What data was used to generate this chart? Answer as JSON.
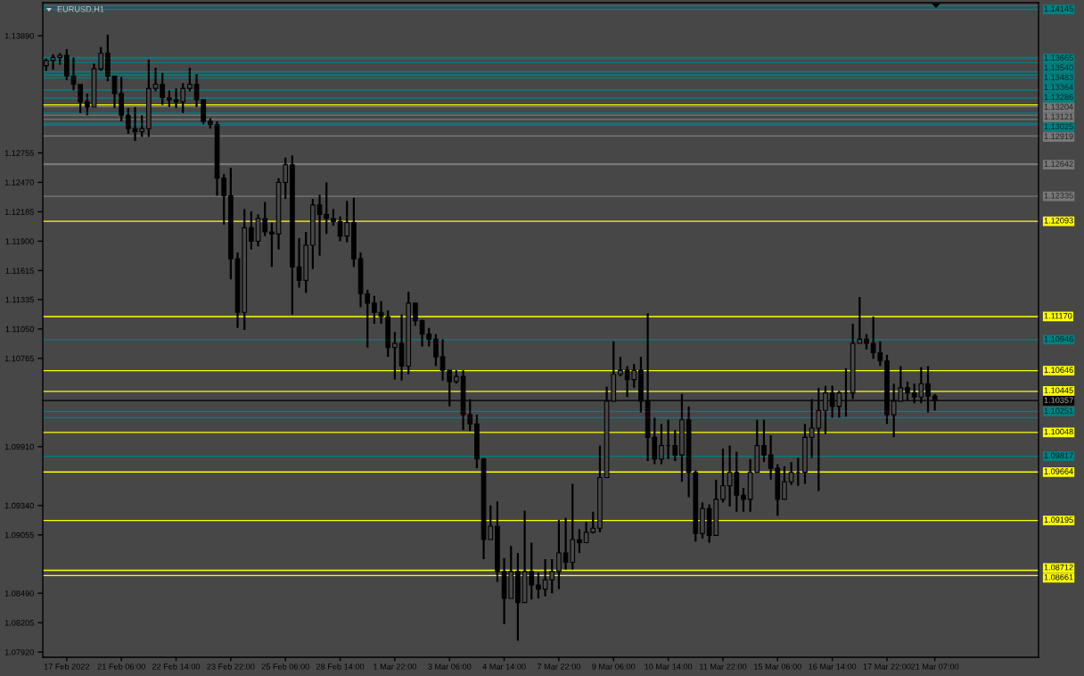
{
  "chart_data": {
    "type": "candlestick",
    "title": "EURUSD,H1",
    "color": "#000000",
    "categories": [
      null,
      null,
      null,
      "17 Feb 2022",
      null,
      null,
      null,
      null,
      null,
      null,
      null,
      "21 Feb 06:00",
      null,
      null,
      null,
      null,
      null,
      null,
      null,
      "22 Feb 14:00",
      null,
      null,
      null,
      null,
      null,
      null,
      null,
      "23 Feb 22:00",
      null,
      null,
      null,
      null,
      null,
      null,
      null,
      "25 Feb 06:00",
      null,
      null,
      null,
      null,
      null,
      null,
      null,
      "28 Feb 14:00",
      null,
      null,
      null,
      null,
      null,
      null,
      null,
      "1 Mar 22:00",
      null,
      null,
      null,
      null,
      null,
      null,
      null,
      "3 Mar 06:00",
      null,
      null,
      null,
      null,
      null,
      null,
      null,
      "4 Mar 14:00",
      null,
      null,
      null,
      null,
      null,
      null,
      null,
      "7 Mar 22:00",
      null,
      null,
      null,
      null,
      null,
      null,
      null,
      "9 Mar 06:00",
      null,
      null,
      null,
      null,
      null,
      null,
      null,
      "10 Mar 14:00",
      null,
      null,
      null,
      null,
      null,
      null,
      null,
      "11 Mar 22:00",
      null,
      null,
      null,
      null,
      null,
      null,
      null,
      "15 Mar 06:00",
      null,
      null,
      null,
      null,
      null,
      null,
      null,
      "16 Mar 14:00",
      null,
      null,
      null,
      null,
      null,
      null,
      null,
      "17 Mar 22:00",
      null,
      null,
      null,
      null,
      null,
      null,
      "21 Mar 07:00"
    ],
    "ohlc": [
      [
        1.136,
        1.1367,
        1.1355,
        1.1365
      ],
      [
        1.1365,
        1.1371,
        1.1356,
        1.1368
      ],
      [
        1.1368,
        1.1372,
        1.1361,
        1.137
      ],
      [
        1.137,
        1.1376,
        1.1346,
        1.135
      ],
      [
        1.135,
        1.1368,
        1.1336,
        1.1342
      ],
      [
        1.1342,
        1.1342,
        1.1314,
        1.1325
      ],
      [
        1.1325,
        1.1333,
        1.1312,
        1.132
      ],
      [
        1.132,
        1.1362,
        1.132,
        1.1357
      ],
      [
        1.1357,
        1.1378,
        1.1355,
        1.1372
      ],
      [
        1.1372,
        1.139,
        1.1345,
        1.135
      ],
      [
        1.135,
        1.135,
        1.1319,
        1.1333
      ],
      [
        1.1333,
        1.1349,
        1.1306,
        1.1312
      ],
      [
        1.1312,
        1.1319,
        1.1294,
        1.1299
      ],
      [
        1.1299,
        1.132,
        1.1287,
        1.1296
      ],
      [
        1.1296,
        1.1312,
        1.1291,
        1.1299
      ],
      [
        1.1299,
        1.1366,
        1.1291,
        1.1338
      ],
      [
        1.1338,
        1.1358,
        1.1335,
        1.1342
      ],
      [
        1.1342,
        1.1353,
        1.1322,
        1.1329
      ],
      [
        1.1329,
        1.1336,
        1.132,
        1.1327
      ],
      [
        1.1327,
        1.1338,
        1.1319,
        1.1325
      ],
      [
        1.1325,
        1.1343,
        1.1314,
        1.1338
      ],
      [
        1.1338,
        1.1358,
        1.1335,
        1.1342
      ],
      [
        1.1342,
        1.1352,
        1.132,
        1.1327
      ],
      [
        1.1327,
        1.1327,
        1.1303,
        1.1306
      ],
      [
        1.1306,
        1.1309,
        1.1299,
        1.1303
      ],
      [
        1.1303,
        1.1306,
        1.1234,
        1.1251
      ],
      [
        1.1251,
        1.1255,
        1.1206,
        1.1234
      ],
      [
        1.1234,
        1.1261,
        1.1153,
        1.1173
      ],
      [
        1.1173,
        1.1179,
        1.1106,
        1.1121
      ],
      [
        1.1121,
        1.1221,
        1.1104,
        1.1203
      ],
      [
        1.1203,
        1.1219,
        1.1182,
        1.119
      ],
      [
        1.119,
        1.1216,
        1.1185,
        1.1212
      ],
      [
        1.1212,
        1.1228,
        1.1195,
        1.1199
      ],
      [
        1.1199,
        1.1208,
        1.1165,
        1.1197
      ],
      [
        1.1197,
        1.1251,
        1.1182,
        1.1247
      ],
      [
        1.1247,
        1.1271,
        1.1231,
        1.1264
      ],
      [
        1.1264,
        1.1273,
        1.1119,
        1.1165
      ],
      [
        1.1165,
        1.1193,
        1.1145,
        1.1152
      ],
      [
        1.1152,
        1.1199,
        1.114,
        1.1186
      ],
      [
        1.1186,
        1.1231,
        1.1163,
        1.1225
      ],
      [
        1.1225,
        1.1235,
        1.1176,
        1.1216
      ],
      [
        1.1216,
        1.1247,
        1.1197,
        1.1212
      ],
      [
        1.1212,
        1.1221,
        1.1205,
        1.1209
      ],
      [
        1.1209,
        1.1214,
        1.119,
        1.1195
      ],
      [
        1.1195,
        1.1229,
        1.1189,
        1.1208
      ],
      [
        1.1208,
        1.1232,
        1.1165,
        1.1173
      ],
      [
        1.1173,
        1.1179,
        1.1126,
        1.1139
      ],
      [
        1.1139,
        1.1143,
        1.1087,
        1.113
      ],
      [
        1.113,
        1.1137,
        1.111,
        1.1121
      ],
      [
        1.1121,
        1.1132,
        1.111,
        1.1117
      ],
      [
        1.1117,
        1.1123,
        1.1078,
        1.1087
      ],
      [
        1.1087,
        1.1102,
        1.1056,
        1.1091
      ],
      [
        1.1091,
        1.1119,
        1.1055,
        1.1069
      ],
      [
        1.1069,
        1.1141,
        1.1061,
        1.113
      ],
      [
        1.113,
        1.113,
        1.1108,
        1.1113
      ],
      [
        1.1113,
        1.1114,
        1.1088,
        1.11
      ],
      [
        1.11,
        1.1106,
        1.1088,
        1.1095
      ],
      [
        1.1095,
        1.11,
        1.1069,
        1.1078
      ],
      [
        1.1078,
        1.1095,
        1.1055,
        1.1065
      ],
      [
        1.1065,
        1.1065,
        1.103,
        1.1054
      ],
      [
        1.1054,
        1.1065,
        1.1052,
        1.1059
      ],
      [
        1.1059,
        1.1065,
        1.1007,
        1.1022
      ],
      [
        1.1022,
        1.1037,
        1.1006,
        1.1013
      ],
      [
        1.1013,
        1.1022,
        1.097,
        1.0979
      ],
      [
        1.0979,
        1.098,
        1.0882,
        1.0901
      ],
      [
        1.0901,
        1.0934,
        1.0901,
        1.0914
      ],
      [
        1.0914,
        1.0938,
        1.086,
        1.087
      ],
      [
        1.087,
        1.0883,
        1.0819,
        1.0844
      ],
      [
        1.0844,
        1.0895,
        1.0844,
        1.087
      ],
      [
        1.087,
        1.0888,
        1.0803,
        1.084
      ],
      [
        1.084,
        1.0929,
        1.084,
        1.087
      ],
      [
        1.087,
        1.0898,
        1.0843,
        1.0857
      ],
      [
        1.0857,
        1.0869,
        1.0844,
        1.0853
      ],
      [
        1.0853,
        1.0882,
        1.0846,
        1.0862
      ],
      [
        1.0862,
        1.0882,
        1.0849,
        1.087
      ],
      [
        1.087,
        1.092,
        1.0853,
        1.0888
      ],
      [
        1.0888,
        1.0922,
        1.0872,
        1.0879
      ],
      [
        1.0879,
        1.0955,
        1.0872,
        1.0901
      ],
      [
        1.0901,
        1.0911,
        1.0888,
        1.0898
      ],
      [
        1.0898,
        1.0918,
        1.0898,
        1.0908
      ],
      [
        1.0908,
        1.0928,
        1.0907,
        1.0912
      ],
      [
        1.0912,
        1.0992,
        1.0908,
        1.0961
      ],
      [
        1.0961,
        1.1049,
        1.0961,
        1.1035
      ],
      [
        1.1035,
        1.1093,
        1.1035,
        1.1061
      ],
      [
        1.1061,
        1.1078,
        1.1059,
        1.1065
      ],
      [
        1.1065,
        1.1069,
        1.1039,
        1.1056
      ],
      [
        1.1056,
        1.1071,
        1.1048,
        1.1065
      ],
      [
        1.1065,
        1.1078,
        1.1024,
        1.1035
      ],
      [
        1.1035,
        1.112,
        1.0977,
        1.1
      ],
      [
        1.1,
        1.1019,
        1.0974,
        1.0979
      ],
      [
        1.0979,
        1.1013,
        1.0974,
        1.0992
      ],
      [
        1.0992,
        1.1017,
        1.0979,
        1.0992
      ],
      [
        1.0992,
        1.1007,
        1.0977,
        1.0983
      ],
      [
        1.0983,
        1.1042,
        1.0957,
        1.1017
      ],
      [
        1.1017,
        1.103,
        1.0942,
        1.0966
      ],
      [
        1.0966,
        1.0968,
        1.0899,
        1.0907
      ],
      [
        1.0907,
        1.0937,
        1.0902,
        1.0931
      ],
      [
        1.0931,
        1.0935,
        1.0898,
        1.0905
      ],
      [
        1.0905,
        1.0959,
        1.0905,
        1.094
      ],
      [
        1.094,
        1.0989,
        1.0937,
        1.0953
      ],
      [
        1.0953,
        1.0992,
        1.0933,
        1.0966
      ],
      [
        1.0966,
        1.0986,
        1.0928,
        1.0944
      ],
      [
        1.0944,
        1.0951,
        1.0928,
        1.094
      ],
      [
        1.094,
        1.0979,
        1.0928,
        1.0966
      ],
      [
        1.0966,
        1.1017,
        1.0966,
        1.0992
      ],
      [
        1.0992,
        1.1017,
        1.0976,
        1.0983
      ],
      [
        1.0983,
        1.1002,
        1.0959,
        1.097
      ],
      [
        1.097,
        1.0974,
        1.0924,
        1.094
      ],
      [
        1.094,
        1.0972,
        1.094,
        1.0957
      ],
      [
        1.0957,
        1.0976,
        1.0954,
        1.0966
      ],
      [
        1.0966,
        1.098,
        1.0953,
        1.0966
      ],
      [
        1.0966,
        1.1013,
        1.0955,
        1.1
      ],
      [
        1.1,
        1.1037,
        1.098,
        1.1009
      ],
      [
        1.1009,
        1.1048,
        1.0948,
        1.1026
      ],
      [
        1.1026,
        1.105,
        1.1003,
        1.1043
      ],
      [
        1.1043,
        1.105,
        1.1019,
        1.103
      ],
      [
        1.103,
        1.1045,
        1.1019,
        1.1043
      ],
      [
        1.1043,
        1.1067,
        1.102,
        1.1043
      ],
      [
        1.1043,
        1.111,
        1.1037,
        1.1091
      ],
      [
        1.1091,
        1.1136,
        1.1091,
        1.1095
      ],
      [
        1.1095,
        1.11,
        1.1085,
        1.1091
      ],
      [
        1.1091,
        1.1117,
        1.1076,
        1.1082
      ],
      [
        1.1082,
        1.1093,
        1.1069,
        1.1074
      ],
      [
        1.1074,
        1.108,
        1.1013,
        1.1022
      ],
      [
        1.1022,
        1.1052,
        1.1,
        1.1035
      ],
      [
        1.1035,
        1.1069,
        1.1035,
        1.1048
      ],
      [
        1.1048,
        1.1054,
        1.1035,
        1.1043
      ],
      [
        1.1043,
        1.1052,
        1.1033,
        1.1039
      ],
      [
        1.1039,
        1.1068,
        1.1033,
        1.1052
      ],
      [
        1.1052,
        1.1069,
        1.1024,
        1.104
      ],
      [
        1.104,
        1.1042,
        1.1026,
        1.1036
      ]
    ],
    "ylim": [
      1.0787,
      1.1421
    ],
    "yticks": [
      {
        "value": 1.1389,
        "label": "1.13890"
      },
      1.12755,
      {
        "value": 1.1247,
        "label": "1.12470"
      },
      1.12185,
      {
        "value": 1.119,
        "label": "1.11900"
      },
      1.11615,
      1.11335,
      {
        "value": 1.1105,
        "label": "1.11050"
      },
      1.10765,
      {
        "value": 1.0991,
        "label": "1.09910"
      },
      {
        "value": 1.0934,
        "label": "1.09340"
      },
      1.09055,
      {
        "value": 1.0849,
        "label": "1.08490"
      },
      1.08205,
      {
        "value": 1.0792,
        "label": "1.07920"
      }
    ],
    "ref_lines": [
      {
        "axis": "y",
        "value": 1.1418,
        "color": "#008080"
      },
      {
        "axis": "y",
        "value": 1.14145,
        "color": "#008080",
        "label": "1.14145"
      },
      {
        "axis": "y",
        "value": 1.1368,
        "color": "#008080"
      },
      {
        "axis": "y",
        "value": 1.13665,
        "color": "#008080",
        "label": "1.13665"
      },
      {
        "axis": "y",
        "value": 1.1363,
        "color": "#008080"
      },
      {
        "axis": "y",
        "value": 1.1354,
        "color": "#008080",
        "label": "1.13540"
      },
      {
        "axis": "y",
        "value": 1.1351,
        "color": "#008080"
      },
      {
        "axis": "y",
        "value": 1.13483,
        "color": "#008080",
        "label": "1.13483"
      },
      {
        "axis": "y",
        "value": 1.13364,
        "color": "#008080",
        "label": "1.13364"
      },
      {
        "axis": "y",
        "value": 1.13286,
        "color": "#008080",
        "label": "1.13286"
      },
      {
        "axis": "y",
        "value": 1.1322,
        "color": "#ffff00"
      },
      {
        "axis": "y",
        "value": 1.13204,
        "color": "#787878",
        "label": "1.13204"
      },
      {
        "axis": "y",
        "value": 1.1314,
        "color": "#008080"
      },
      {
        "axis": "y",
        "value": 1.13121,
        "color": "#787878",
        "label": "1.13121"
      },
      {
        "axis": "y",
        "value": 1.1308,
        "color": "#787878"
      },
      {
        "axis": "y",
        "value": 1.1304,
        "color": "#008080"
      },
      {
        "axis": "y",
        "value": 1.13025,
        "color": "#008080",
        "label": "1.13025"
      },
      {
        "axis": "y",
        "value": 1.12919,
        "color": "#787878",
        "label": "1.12919"
      },
      {
        "axis": "y",
        "value": 1.1265,
        "color": "#787878"
      },
      {
        "axis": "y",
        "value": 1.12642,
        "color": "#787878",
        "label": "1.12642"
      },
      {
        "axis": "y",
        "value": 1.12335,
        "color": "#787878",
        "label": "1.12335"
      },
      {
        "axis": "y",
        "value": 1.12093,
        "color": "#ffff00",
        "label": "1.12093"
      },
      {
        "axis": "y",
        "value": 1.1117,
        "color": "#ffff00",
        "label": "1.11170"
      },
      {
        "axis": "y",
        "value": 1.10946,
        "color": "#008080",
        "label": "1.10946"
      },
      {
        "axis": "y",
        "value": 1.10646,
        "color": "#ffff00",
        "label": "1.10646"
      },
      {
        "axis": "y",
        "value": 1.10445,
        "color": "#ffff00",
        "label": "1.10445"
      },
      {
        "axis": "y",
        "value": 1.10357,
        "color": "#000000",
        "label": "1.10357"
      },
      {
        "axis": "y",
        "value": 1.10251,
        "color": "#008080",
        "label": "1.10251"
      },
      {
        "axis": "y",
        "value": 1.1019,
        "color": "#008080"
      },
      {
        "axis": "y",
        "value": 1.10048,
        "color": "#ffff00",
        "label": "1.10048"
      },
      {
        "axis": "y",
        "value": 1.09817,
        "color": "#008080",
        "label": "1.09817"
      },
      {
        "axis": "y",
        "value": 1.09664,
        "color": "#ffff00",
        "label": "1.09664"
      },
      {
        "axis": "y",
        "value": 1.09195,
        "color": "#ffff00",
        "label": "1.09195"
      },
      {
        "axis": "y",
        "value": 1.08712,
        "color": "#ffff00",
        "label": "1.08712"
      },
      {
        "axis": "y",
        "value": 1.08661,
        "color": "#ffff00",
        "label": "1.08661"
      }
    ]
  }
}
